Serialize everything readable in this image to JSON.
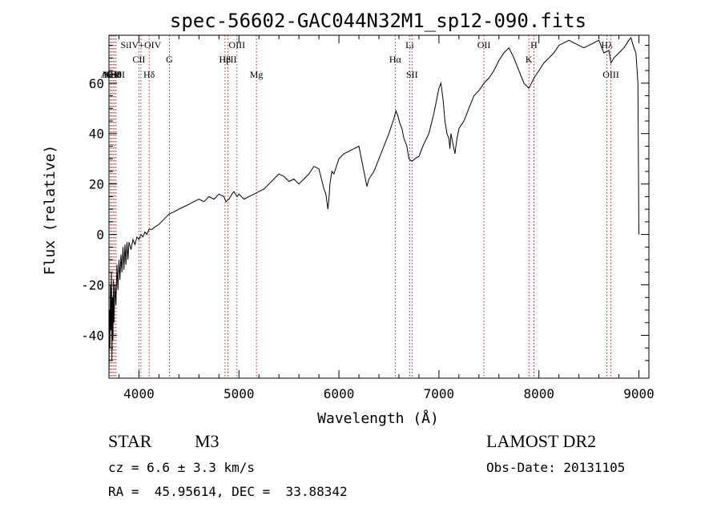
{
  "chart_data": {
    "type": "line",
    "title": "spec-56602-GAC044N32M1_sp12-090.fits",
    "xlabel": "Wavelength (Å)",
    "ylabel": "Flux (relative)",
    "xlim": [
      3700,
      9100
    ],
    "ylim": [
      -57,
      79
    ],
    "xticks": [
      4000,
      5000,
      6000,
      7000,
      8000,
      9000
    ],
    "yticks": [
      -40,
      -20,
      0,
      20,
      40,
      60
    ],
    "grid": false,
    "line_color": "#000000",
    "marker_color": "#b22222",
    "series": [
      {
        "x": [
          3700,
          3705,
          3710,
          3715,
          3720,
          3725,
          3730,
          3735,
          3740,
          3745,
          3750,
          3760,
          3770,
          3780,
          3790,
          3800,
          3810,
          3820,
          3830,
          3840,
          3850,
          3860,
          3870,
          3880,
          3890,
          3900,
          3920,
          3940,
          3960,
          3980,
          4000,
          4020,
          4040,
          4060,
          4080,
          4100,
          4130,
          4160,
          4200,
          4250,
          4300,
          4350,
          4400,
          4450,
          4500,
          4550,
          4600,
          4650,
          4700,
          4750,
          4800,
          4850,
          4870,
          4900,
          4930,
          4950,
          4980,
          5000,
          5050,
          5100,
          5150,
          5200,
          5250,
          5300,
          5350,
          5400,
          5450,
          5500,
          5550,
          5600,
          5650,
          5700,
          5750,
          5800,
          5850,
          5870,
          5890,
          5900,
          5910,
          5930,
          5950,
          6000,
          6050,
          6100,
          6150,
          6200,
          6250,
          6280,
          6300,
          6350,
          6400,
          6450,
          6500,
          6550,
          6570,
          6590,
          6610,
          6630,
          6650,
          6680,
          6700,
          6730,
          6760,
          6800,
          6850,
          6900,
          6950,
          7000,
          7020,
          7040,
          7060,
          7080,
          7100,
          7110,
          7120,
          7140,
          7160,
          7180,
          7200,
          7250,
          7300,
          7350,
          7400,
          7450,
          7500,
          7550,
          7600,
          7650,
          7700,
          7750,
          7800,
          7850,
          7900,
          7950,
          8000,
          8050,
          8100,
          8150,
          8200,
          8250,
          8300,
          8350,
          8400,
          8450,
          8500,
          8550,
          8600,
          8650,
          8700,
          8720,
          8750,
          8800,
          8850,
          8900,
          8920,
          8950,
          8970,
          8990,
          9000
        ],
        "y": [
          -57,
          -30,
          -45,
          -20,
          -38,
          -15,
          -50,
          -25,
          -42,
          -18,
          -35,
          -20,
          -28,
          -12,
          -22,
          -10,
          -18,
          -8,
          -15,
          -5,
          -14,
          -4,
          -12,
          -3,
          -10,
          -3,
          -6,
          -2,
          -4,
          -1,
          -2,
          0,
          -1,
          1,
          0,
          2,
          2,
          3,
          4,
          6,
          8,
          9,
          10,
          11,
          12,
          13,
          14,
          13,
          15,
          14,
          16,
          15,
          13,
          14,
          16,
          17,
          15,
          16,
          14,
          15,
          16,
          17,
          18,
          20,
          22,
          24,
          23,
          21,
          22,
          20,
          22,
          24,
          27,
          26,
          18,
          16,
          10,
          14,
          20,
          25,
          24,
          30,
          32,
          33,
          34,
          35,
          25,
          19,
          22,
          25,
          30,
          35,
          40,
          46,
          49,
          47,
          44,
          42,
          38,
          35,
          30,
          29,
          30,
          31,
          36,
          40,
          48,
          58,
          60,
          54,
          45,
          40,
          38,
          34,
          40,
          36,
          32,
          38,
          42,
          45,
          50,
          55,
          57,
          60,
          62,
          65,
          69,
          72,
          74,
          70,
          65,
          60,
          58,
          62,
          65,
          68,
          70,
          72,
          75,
          76,
          77,
          76,
          75,
          74,
          75,
          76,
          77,
          72,
          73,
          68,
          70,
          72,
          74,
          77,
          78,
          74,
          72,
          60,
          0
        ]
      }
    ],
    "line_markers": [
      {
        "label": "AlIII",
        "x": 3713,
        "row": 3
      },
      {
        "label": "NeV",
        "x": 3727,
        "row": 3
      },
      {
        "label": "OII",
        "x": 3741,
        "row": 3
      },
      {
        "label": "NeIII",
        "x": 3756,
        "row": 3
      },
      {
        "label": "Hθ",
        "x": 3771,
        "row": 3
      },
      {
        "label": "SiIV+OIV",
        "x": 4020,
        "row": 1
      },
      {
        "label": "CII",
        "x": 3999,
        "row": 2
      },
      {
        "label": "Hδ",
        "x": 4102,
        "row": 3
      },
      {
        "label": "G",
        "x": 4305,
        "row": 2
      },
      {
        "label": "OIII",
        "x": 4980,
        "row": 1
      },
      {
        "label": "Hβ",
        "x": 4861,
        "row": 2
      },
      {
        "label": "HeII",
        "x": 4890,
        "row": 2
      },
      {
        "label": "Mg",
        "x": 5175,
        "row": 3
      },
      {
        "label": "Li",
        "x": 6708,
        "row": 1
      },
      {
        "label": "Hα",
        "x": 6563,
        "row": 2
      },
      {
        "label": "SII",
        "x": 6731,
        "row": 3
      },
      {
        "label": "OII",
        "x": 7450,
        "row": 1
      },
      {
        "label": "K",
        "x": 7900,
        "row": 2
      },
      {
        "label": "H",
        "x": 7950,
        "row": 1
      },
      {
        "label": "Hλ",
        "x": 8680,
        "row": 1
      },
      {
        "label": "OIII",
        "x": 8720,
        "row": 3
      }
    ]
  },
  "info": {
    "object_type": "STAR",
    "object_class": "M3",
    "survey": "LAMOST DR2",
    "cz": "cz = 6.6 ± 3.3 km/s",
    "obs_date": "Obs-Date: 20131105",
    "radec": "RA =  45.95614, DEC =  33.88342"
  }
}
